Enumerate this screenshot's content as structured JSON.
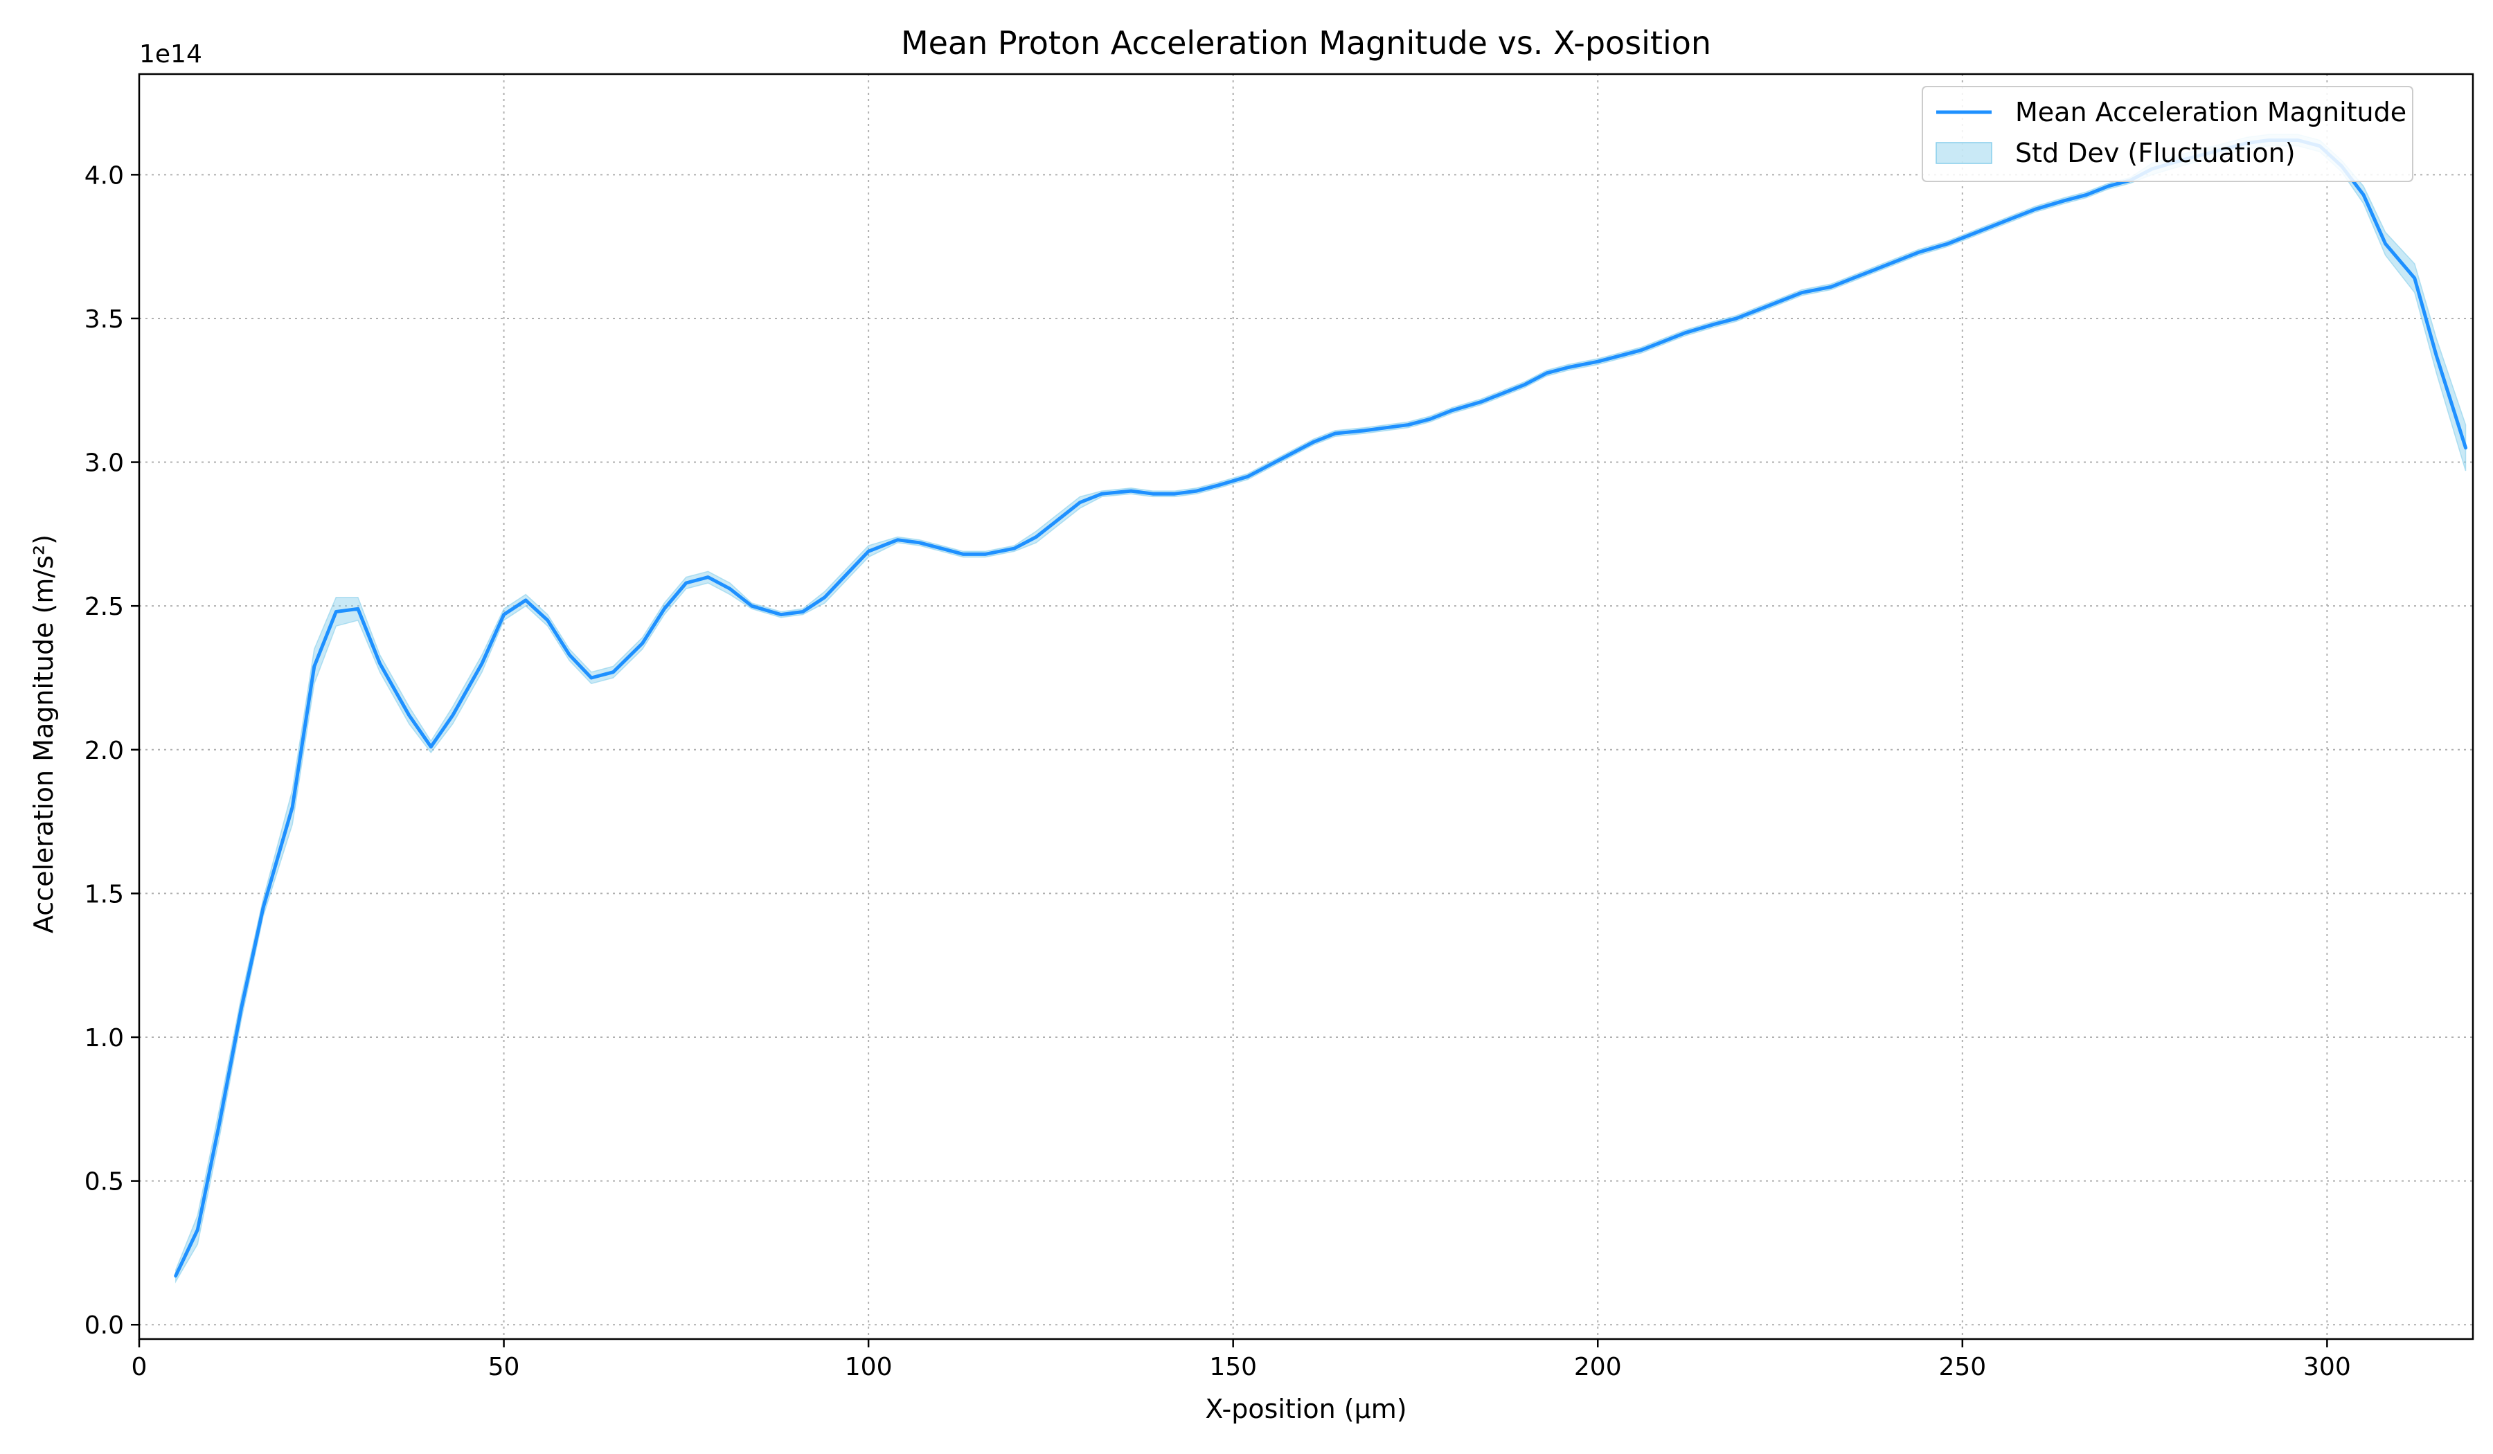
{
  "chart_data": {
    "type": "line",
    "title": "Mean Proton Acceleration Magnitude vs. X-position",
    "xlabel": "X-position (µm)",
    "ylabel": "Acceleration Magnitude (m/s²)",
    "y_offset_label": "1e14",
    "xlim": [
      0,
      320
    ],
    "ylim": [
      -0.05,
      4.35
    ],
    "xticks": [
      0,
      50,
      100,
      150,
      200,
      250,
      300
    ],
    "yticks": [
      0.0,
      0.5,
      1.0,
      1.5,
      2.0,
      2.5,
      3.0,
      3.5,
      4.0
    ],
    "grid": true,
    "legend_position": "top-right",
    "colors": {
      "line": "#1e90ff",
      "band": "#87ceeb"
    },
    "series": [
      {
        "name": "Mean Acceleration Magnitude",
        "x": [
          5,
          8,
          11,
          14,
          17,
          21,
          24,
          27,
          30,
          33,
          37,
          40,
          43,
          47,
          50,
          53,
          56,
          59,
          62,
          65,
          69,
          72,
          75,
          78,
          81,
          84,
          88,
          91,
          94,
          97,
          100,
          104,
          107,
          110,
          113,
          116,
          120,
          123,
          126,
          129,
          132,
          136,
          139,
          142,
          145,
          148,
          152,
          155,
          158,
          161,
          164,
          168,
          171,
          174,
          177,
          180,
          184,
          187,
          190,
          193,
          196,
          200,
          203,
          206,
          209,
          212,
          216,
          219,
          222,
          225,
          228,
          232,
          235,
          238,
          241,
          244,
          248,
          251,
          254,
          257,
          260,
          264,
          267,
          270,
          273,
          276,
          280,
          283,
          286,
          289,
          292,
          296,
          299,
          302,
          305,
          308,
          312,
          315,
          319
        ],
        "y": [
          0.17,
          0.33,
          0.7,
          1.1,
          1.45,
          1.8,
          2.29,
          2.48,
          2.49,
          2.3,
          2.12,
          2.01,
          2.12,
          2.3,
          2.47,
          2.52,
          2.45,
          2.33,
          2.25,
          2.27,
          2.37,
          2.49,
          2.58,
          2.6,
          2.56,
          2.5,
          2.47,
          2.48,
          2.53,
          2.61,
          2.69,
          2.73,
          2.72,
          2.7,
          2.68,
          2.68,
          2.7,
          2.74,
          2.8,
          2.86,
          2.89,
          2.9,
          2.89,
          2.89,
          2.9,
          2.92,
          2.95,
          2.99,
          3.03,
          3.07,
          3.1,
          3.11,
          3.12,
          3.13,
          3.15,
          3.18,
          3.21,
          3.24,
          3.27,
          3.31,
          3.33,
          3.35,
          3.37,
          3.39,
          3.42,
          3.45,
          3.48,
          3.5,
          3.53,
          3.56,
          3.59,
          3.61,
          3.64,
          3.67,
          3.7,
          3.73,
          3.76,
          3.79,
          3.82,
          3.85,
          3.88,
          3.91,
          3.93,
          3.96,
          3.98,
          4.02,
          4.05,
          4.07,
          4.09,
          4.11,
          4.12,
          4.12,
          4.1,
          4.03,
          3.93,
          3.76,
          3.64,
          3.37,
          3.05
        ]
      },
      {
        "name": "Std Dev (Fluctuation)",
        "std": [
          0.02,
          0.05,
          0.05,
          0.04,
          0.03,
          0.06,
          0.06,
          0.05,
          0.04,
          0.03,
          0.03,
          0.02,
          0.03,
          0.03,
          0.02,
          0.02,
          0.02,
          0.02,
          0.02,
          0.02,
          0.02,
          0.02,
          0.02,
          0.02,
          0.02,
          0.01,
          0.01,
          0.01,
          0.02,
          0.02,
          0.02,
          0.01,
          0.01,
          0.01,
          0.01,
          0.01,
          0.01,
          0.02,
          0.02,
          0.02,
          0.01,
          0.01,
          0.01,
          0.01,
          0.01,
          0.01,
          0.01,
          0.01,
          0.01,
          0.01,
          0.01,
          0.01,
          0.01,
          0.01,
          0.01,
          0.01,
          0.01,
          0.01,
          0.01,
          0.01,
          0.01,
          0.01,
          0.01,
          0.01,
          0.01,
          0.01,
          0.01,
          0.01,
          0.01,
          0.01,
          0.01,
          0.01,
          0.01,
          0.01,
          0.01,
          0.01,
          0.01,
          0.01,
          0.01,
          0.01,
          0.01,
          0.01,
          0.01,
          0.01,
          0.01,
          0.02,
          0.02,
          0.02,
          0.02,
          0.02,
          0.02,
          0.02,
          0.02,
          0.02,
          0.03,
          0.04,
          0.05,
          0.06,
          0.08
        ]
      }
    ]
  }
}
